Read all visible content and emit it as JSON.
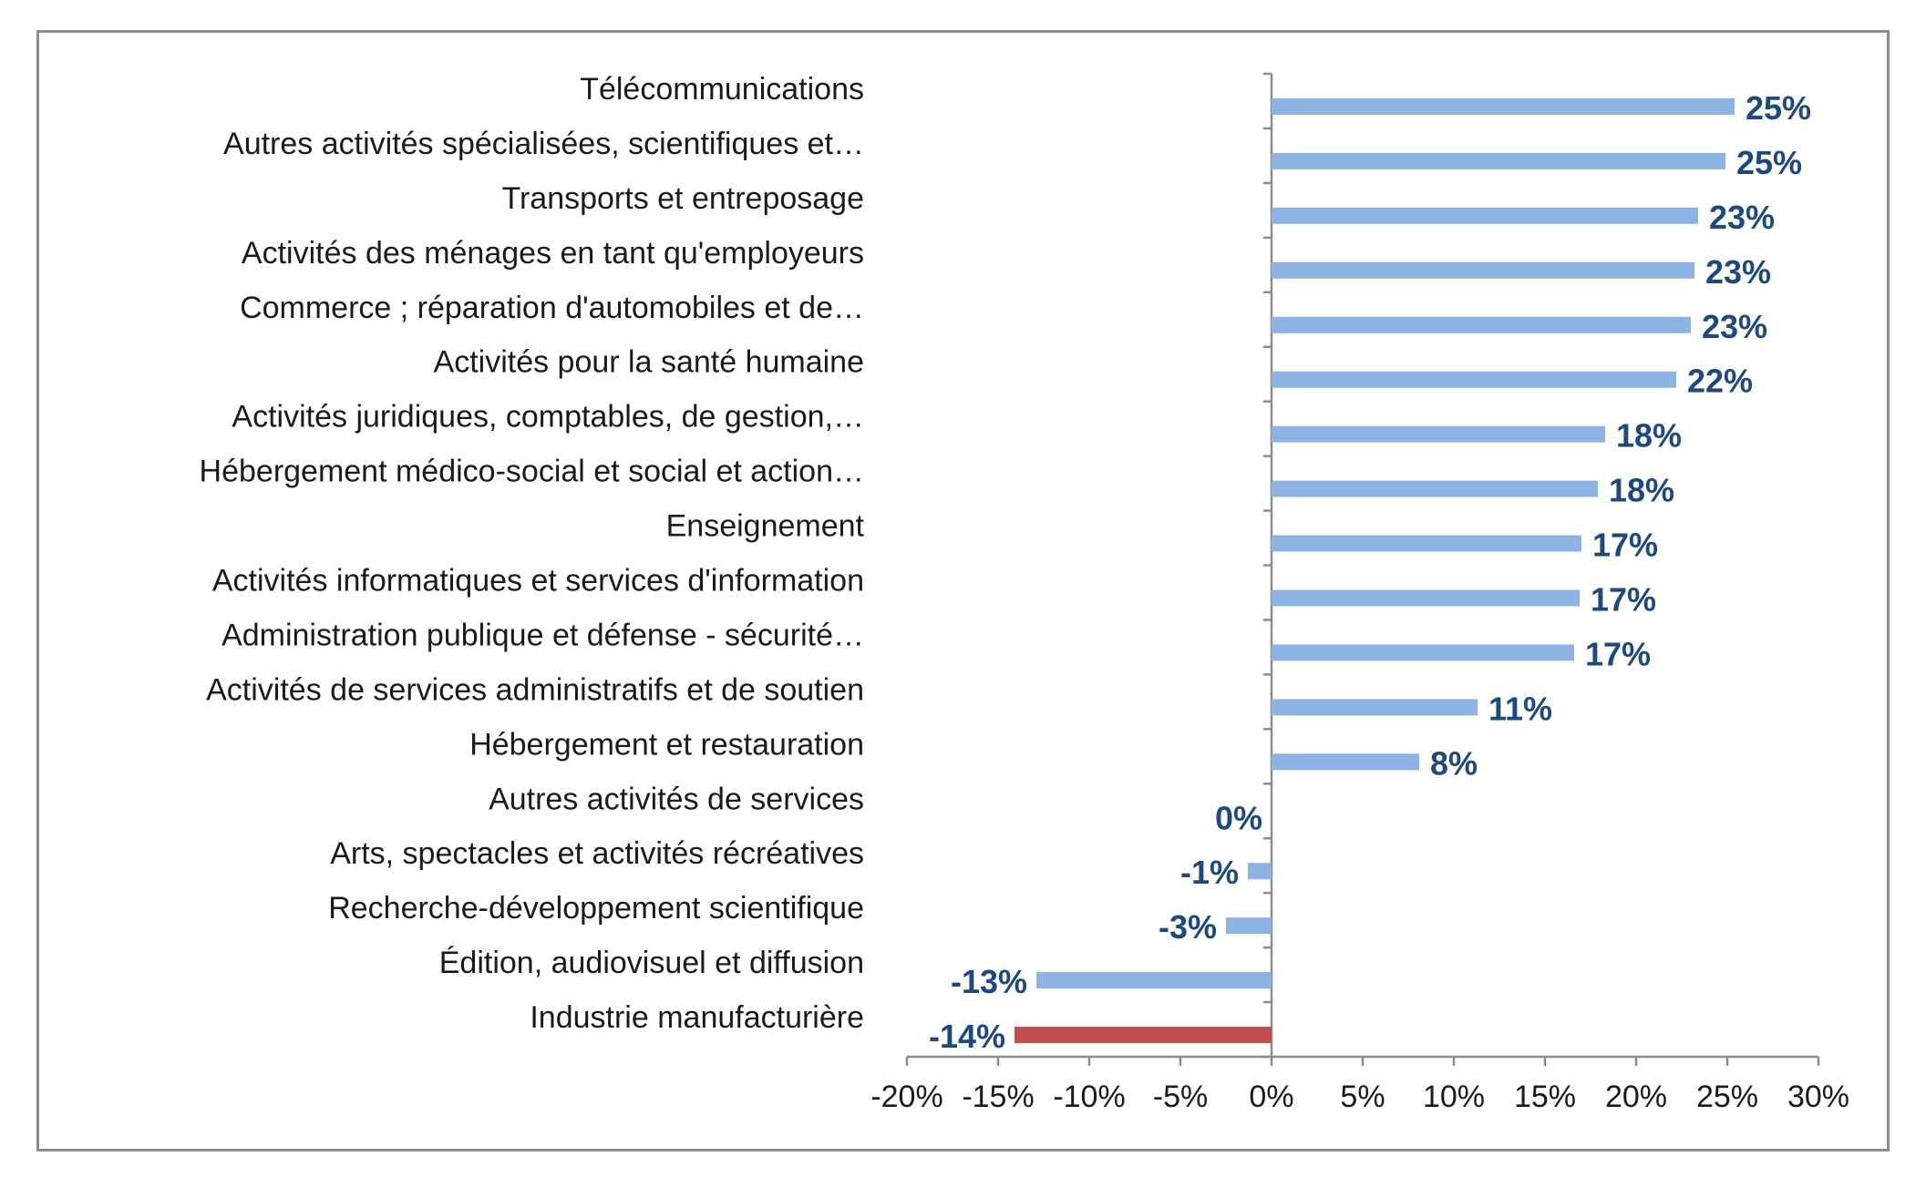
{
  "chart_data": {
    "type": "bar",
    "orientation": "horizontal",
    "title": "",
    "xlabel": "",
    "ylabel": "",
    "xlim": [
      -20,
      30
    ],
    "x_ticks": [
      -20,
      -15,
      -10,
      -5,
      0,
      5,
      10,
      15,
      20,
      25,
      30
    ],
    "x_tick_labels": [
      "-20%",
      "-15%",
      "-10%",
      "-5%",
      "0%",
      "5%",
      "10%",
      "15%",
      "20%",
      "25%",
      "30%"
    ],
    "grid": false,
    "legend": "none",
    "categories": [
      "Télécommunications",
      "Autres activités spécialisées, scientifiques et…",
      "Transports et entreposage",
      "Activités des ménages en tant qu'employeurs",
      "Commerce ; réparation d'automobiles et de…",
      "Activités pour la santé humaine",
      "Activités juridiques, comptables, de gestion,…",
      "Hébergement médico-social et social et action…",
      "Enseignement",
      "Activités informatiques et services d'information",
      "Administration publique et défense - sécurité…",
      "Activités de services administratifs et de soutien",
      "Hébergement et restauration",
      "Autres activités de services",
      "Arts, spectacles et activités récréatives",
      "Recherche-développement scientifique",
      "Édition, audiovisuel et diffusion",
      "Industrie manufacturière"
    ],
    "values": [
      25.4,
      24.9,
      23.4,
      23.2,
      23.0,
      22.2,
      18.3,
      17.9,
      17.0,
      16.9,
      16.6,
      11.3,
      8.1,
      0,
      -1.3,
      -2.5,
      -12.9,
      -14.1
    ],
    "value_labels": [
      "25%",
      "25%",
      "23%",
      "23%",
      "23%",
      "22%",
      "18%",
      "18%",
      "17%",
      "17%",
      "17%",
      "11%",
      "8%",
      "0%",
      "-1%",
      "-3%",
      "-13%",
      "-14%"
    ],
    "highlight_category": "Industrie manufacturière",
    "colors": {
      "bar": "#8db3e2",
      "highlight": "#c0504d",
      "data_label": "#1f497d",
      "axis": "#8c8c8c",
      "frame": "#8c8c8c"
    }
  }
}
